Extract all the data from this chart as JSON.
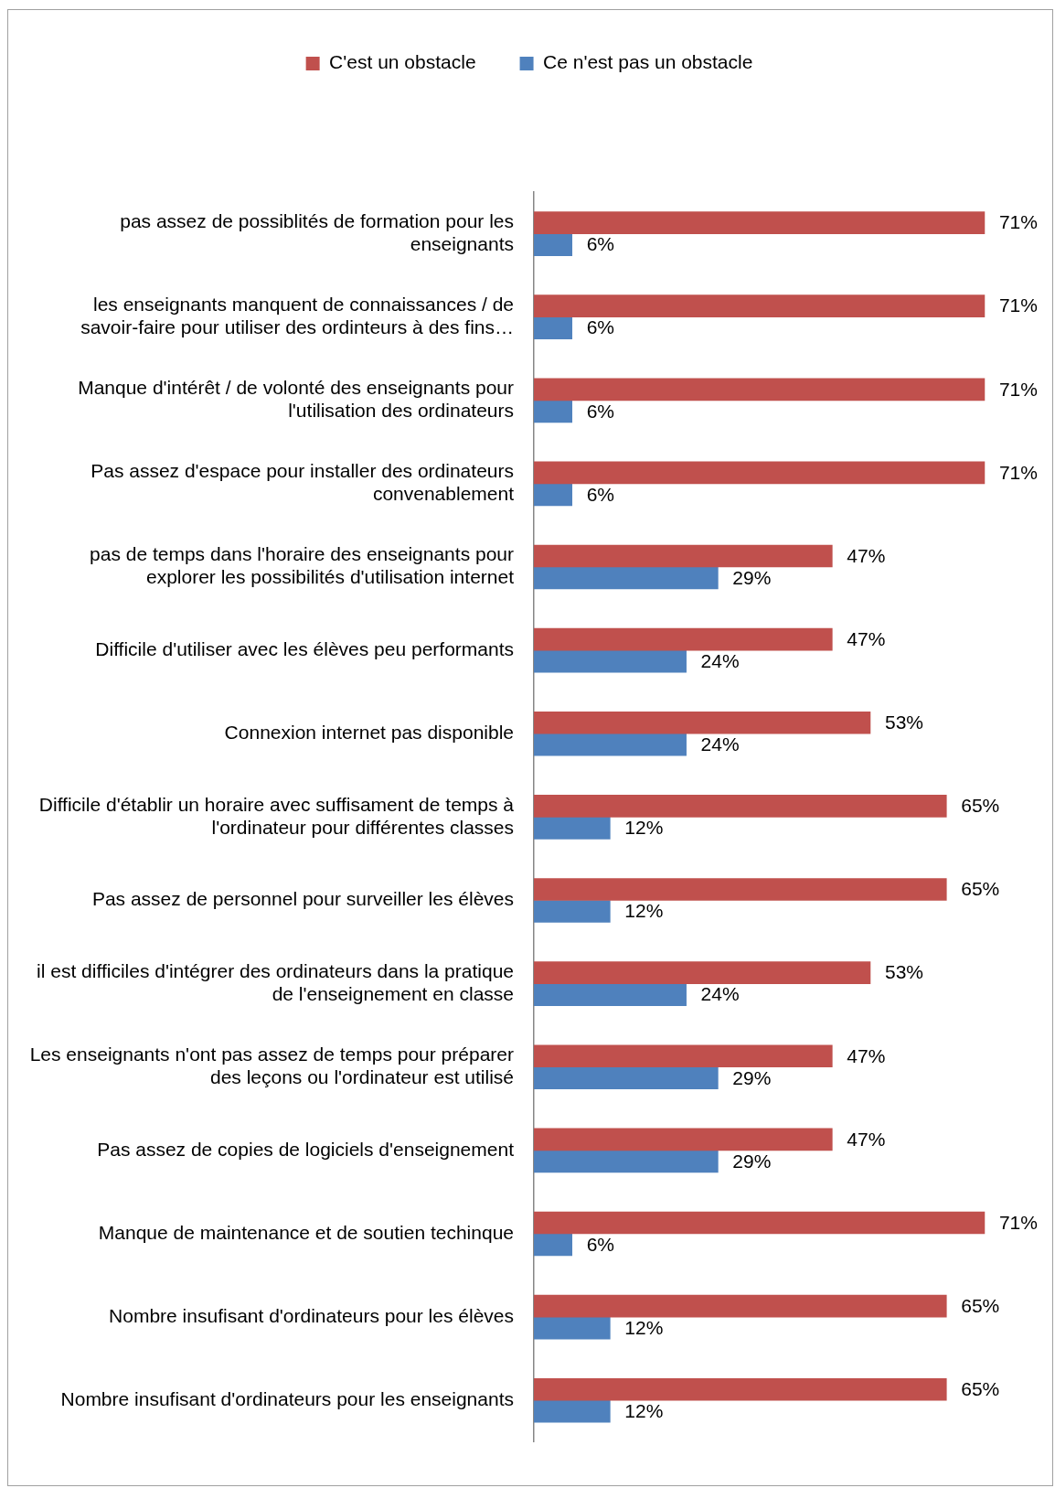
{
  "chart_data": {
    "type": "bar",
    "orientation": "horizontal",
    "legend": "top",
    "grid": false,
    "categories": [
      "pas assez de possiblités de formation pour les enseignants",
      "les enseignants manquent de connaissances / de savoir-faire pour utiliser des ordinteurs à des fins…",
      "Manque d'intérêt / de volonté des enseignants pour l'utilisation des ordinateurs",
      "Pas assez d'espace pour installer des ordinateurs convenablement",
      "pas de temps dans l'horaire des enseignants pour explorer les possibilités d'utilisation internet",
      "Difficile d'utiliser avec les élèves peu performants",
      "Connexion internet pas disponible",
      "Difficile d'établir un horaire avec suffisament de temps à l'ordinateur pour différentes classes",
      "Pas assez de personnel pour surveiller les élèves",
      "il est difficiles d'intégrer des ordinateurs dans la pratique de l'enseignement en classe",
      "Les enseignants n'ont pas assez de temps pour préparer des leçons ou l'ordinateur est utilisé",
      "Pas assez de copies de logiciels d'enseignement",
      "Manque de maintenance et de soutien techinque",
      "Nombre insufisant d'ordinateurs pour les élèves",
      "Nombre insufisant d'ordinateurs pour les enseignants"
    ],
    "series": [
      {
        "name": "C'est un obstacle",
        "color": "#c0504d",
        "values": [
          71,
          71,
          71,
          71,
          47,
          47,
          53,
          65,
          65,
          53,
          47,
          47,
          71,
          65,
          65
        ],
        "value_labels": [
          "71%",
          "71%",
          "71%",
          "71%",
          "47%",
          "47%",
          "53%",
          "65%",
          "65%",
          "53%",
          "47%",
          "47%",
          "71%",
          "65%",
          "65%"
        ]
      },
      {
        "name": "Ce n'est pas un obstacle",
        "color": "#4f81bd",
        "values": [
          6,
          6,
          6,
          6,
          29,
          24,
          24,
          12,
          12,
          24,
          29,
          29,
          6,
          12,
          12
        ],
        "value_labels": [
          "6%",
          "6%",
          "6%",
          "6%",
          "29%",
          "24%",
          "24%",
          "12%",
          "12%",
          "24%",
          "29%",
          "29%",
          "6%",
          "12%",
          "12%"
        ]
      }
    ]
  }
}
